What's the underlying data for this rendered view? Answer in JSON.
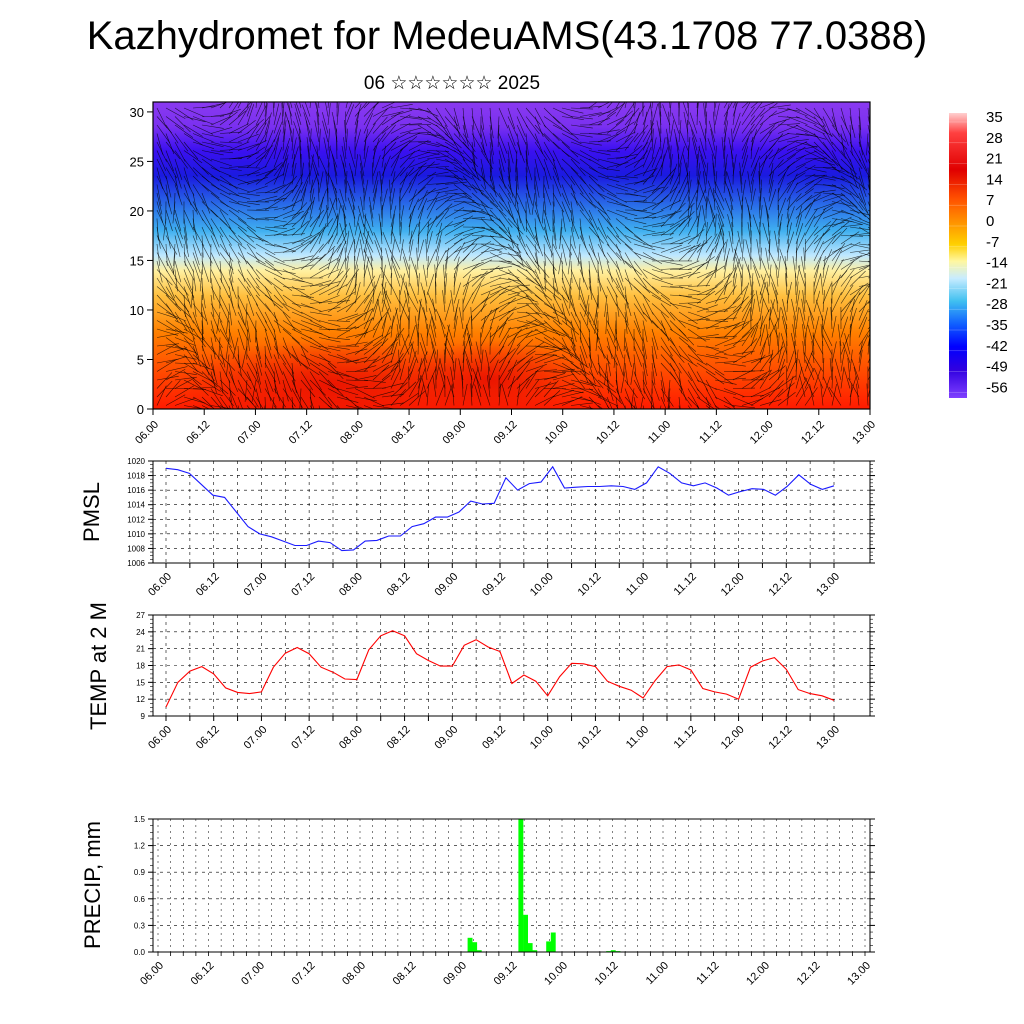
{
  "title": "Kazhydromet for MedeuAMS(43.1708 77.0388)",
  "subtitle": "06 ☆☆☆☆☆☆ 2025",
  "colors": {
    "pressure_line": "#1a1aff",
    "temp_line": "#ff0000",
    "precip_bar": "#00ff00"
  },
  "chart_data": [
    {
      "type": "heatmap",
      "x_ticks": [
        "06.00",
        "06.12",
        "07.00",
        "07.12",
        "08.00",
        "08.12",
        "09.00",
        "09.12",
        "10.00",
        "10.12",
        "11.00",
        "11.12",
        "12.00",
        "12.12",
        "13.00"
      ],
      "y_ticks": [
        "0",
        "5",
        "10",
        "15",
        "20",
        "25",
        "30"
      ],
      "ylim": [
        0,
        31
      ],
      "colorbar_labels": [
        "35",
        "28",
        "21",
        "14",
        "7",
        "0",
        "-7",
        "-14",
        "-21",
        "-28",
        "-35",
        "-42",
        "-49",
        "-56"
      ]
    },
    {
      "type": "line",
      "ylabel": "PMSL",
      "ylim": [
        1006,
        1020
      ],
      "y_ticks": [
        "1020",
        "1018",
        "1016",
        "1014",
        "1012",
        "1010",
        "1008",
        "1006"
      ],
      "x_ticks": [
        "06.00",
        "06.12",
        "07.00",
        "07.12",
        "08.00",
        "08.12",
        "09.00",
        "09.12",
        "10.00",
        "10.12",
        "11.00",
        "11.12",
        "12.00",
        "12.12",
        "13.00"
      ],
      "values": [
        1019,
        1018.8,
        1018.3,
        1016.8,
        1015.3,
        1015,
        1013,
        1011,
        1010,
        1009.6,
        1009,
        1008.4,
        1008.4,
        1009,
        1008.8,
        1007.7,
        1007.8,
        1009,
        1009.1,
        1009.7,
        1009.7,
        1011,
        1011.4,
        1012.3,
        1012.3,
        1013,
        1014.5,
        1014.1,
        1014.2,
        1017.7,
        1016,
        1016.9,
        1017.1,
        1019.2,
        1016.3,
        1016.4,
        1016.5,
        1016.5,
        1016.6,
        1016.5,
        1016.1,
        1017,
        1019.2,
        1018.3,
        1017,
        1016.6,
        1017,
        1016.3,
        1015.3,
        1015.8,
        1016.2,
        1016.1,
        1015.3,
        1016.5,
        1018.1,
        1016.8,
        1016.1,
        1016.6
      ]
    },
    {
      "type": "line",
      "ylabel": "TEMP at 2 M",
      "ylim": [
        9,
        27
      ],
      "y_ticks": [
        "27",
        "24",
        "21",
        "18",
        "15",
        "12",
        "9"
      ],
      "x_ticks": [
        "06.00",
        "06.12",
        "07.00",
        "07.12",
        "08.00",
        "08.12",
        "09.00",
        "09.12",
        "10.00",
        "10.12",
        "11.00",
        "11.12",
        "12.00",
        "12.12",
        "13.00"
      ],
      "values": [
        10.6,
        15,
        17,
        17.8,
        16.5,
        14,
        13.2,
        13,
        13.3,
        17.7,
        20.2,
        21.2,
        20.1,
        17.7,
        16.8,
        15.6,
        15.5,
        20.8,
        23.3,
        24.2,
        23.3,
        20.1,
        18.9,
        17.9,
        17.9,
        21.6,
        22.6,
        21.3,
        20.5,
        14.8,
        16.3,
        15.2,
        12.6,
        16,
        18.4,
        18.3,
        17.8,
        15.2,
        14.3,
        13.6,
        12.2,
        15.3,
        17.8,
        18.1,
        17.2,
        13.9,
        13.3,
        12.9,
        12,
        17.7,
        18.8,
        19.4,
        17.3,
        13.7,
        13,
        12.6,
        11.8
      ]
    },
    {
      "type": "bar",
      "ylabel": "PRECIP, mm",
      "ylim": [
        0,
        1.5
      ],
      "y_ticks": [
        "1.5",
        "1.2",
        "0.9",
        "0.6",
        "0.3",
        "0.0"
      ],
      "x_ticks": [
        "06.00",
        "06.12",
        "07.00",
        "07.12",
        "08.00",
        "08.12",
        "09.00",
        "09.12",
        "10.00",
        "10.12",
        "11.00",
        "11.12",
        "12.00",
        "12.12",
        "13.00"
      ],
      "values": [
        0,
        0,
        0,
        0,
        0,
        0,
        0,
        0,
        0,
        0,
        0,
        0,
        0,
        0,
        0,
        0,
        0,
        0,
        0,
        0,
        0,
        0,
        0,
        0,
        0,
        0,
        0,
        0,
        0,
        0,
        0,
        0,
        0,
        0,
        0,
        0,
        0,
        0,
        0,
        0,
        0,
        0,
        0,
        0,
        0,
        0,
        0,
        0,
        0,
        0,
        0,
        0,
        0,
        0,
        0,
        0,
        0,
        0,
        0,
        0,
        0,
        0,
        0,
        0,
        0,
        0,
        0,
        0.16,
        0.11,
        0.02,
        0,
        0,
        0,
        0,
        0,
        0,
        0,
        0,
        1.5,
        0.42,
        0.1,
        0.02,
        0,
        0,
        0.12,
        0.22,
        0,
        0,
        0,
        0,
        0,
        0,
        0,
        0,
        0,
        0,
        0,
        0.01,
        0.02,
        0.01,
        0,
        0,
        0,
        0,
        0,
        0,
        0,
        0,
        0,
        0,
        0,
        0,
        0,
        0,
        0,
        0,
        0,
        0,
        0,
        0,
        0,
        0,
        0,
        0,
        0,
        0,
        0,
        0,
        0,
        0,
        0,
        0,
        0,
        0,
        0,
        0,
        0,
        0,
        0,
        0,
        0,
        0,
        0,
        0,
        0,
        0,
        0,
        0,
        0,
        0,
        0,
        0,
        0
      ]
    }
  ]
}
